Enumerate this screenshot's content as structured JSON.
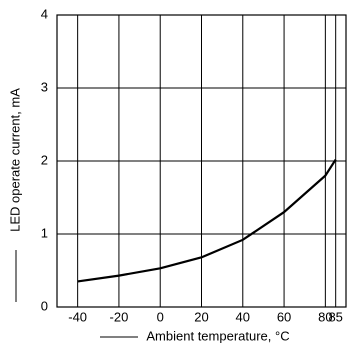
{
  "chart_data": {
    "type": "line",
    "x_label": "Ambient temperature, °C",
    "y_label": "LED operate current, mA",
    "x": [
      -40,
      -20,
      0,
      20,
      40,
      60,
      80,
      85
    ],
    "series": [
      {
        "color": "#000000",
        "values": [
          0.35,
          0.43,
          0.53,
          0.68,
          0.92,
          1.3,
          1.8,
          2.02
        ]
      }
    ],
    "xlim": [
      -50,
      90
    ],
    "xticks": [
      -40,
      -20,
      0,
      20,
      40,
      60,
      80,
      85
    ],
    "ylim": [
      0,
      4
    ],
    "yticks": [
      0,
      1,
      2,
      3,
      4
    ],
    "grid": true
  }
}
